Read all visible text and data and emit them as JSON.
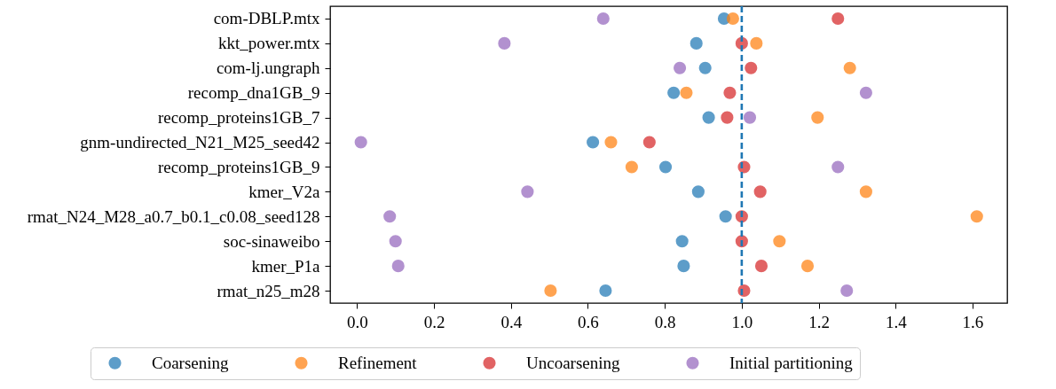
{
  "chart_data": {
    "type": "scatter",
    "orientation": "horizontal",
    "categories": [
      "com-DBLP.mtx",
      "kkt_power.mtx",
      "com-lj.ungraph",
      "recomp_dna1GB_9",
      "recomp_proteins1GB_7",
      "gnm-undirected_N21_M25_seed42",
      "recomp_proteins1GB_9",
      "kmer_V2a",
      "rmat_N24_M28_a0.7_b0.1_c0.08_seed128",
      "soc-sinaweibo",
      "kmer_P1a",
      "rmat_n25_m28"
    ],
    "series": [
      {
        "name": "Coarsening",
        "color": "#1f77b4",
        "values": [
          0.954,
          0.882,
          0.905,
          0.823,
          0.914,
          0.613,
          0.802,
          0.887,
          0.958,
          0.845,
          0.849,
          0.646
        ]
      },
      {
        "name": "Refinement",
        "color": "#ff7f0e",
        "values": [
          0.977,
          1.038,
          1.281,
          0.856,
          1.197,
          0.66,
          0.714,
          1.323,
          1.611,
          1.098,
          1.171,
          0.503
        ]
      },
      {
        "name": "Uncoarsening",
        "color": "#d62728",
        "values": [
          1.25,
          1.0,
          1.024,
          0.969,
          0.962,
          0.76,
          1.006,
          1.048,
          1.0,
          1.0,
          1.051,
          1.006
        ]
      },
      {
        "name": "Initial partitioning",
        "color": "#9467bd",
        "values": [
          0.64,
          0.383,
          0.839,
          1.323,
          1.021,
          0.01,
          1.25,
          0.443,
          0.085,
          0.1,
          0.107,
          1.273
        ]
      }
    ],
    "xlim": [
      -0.07,
      1.69
    ],
    "xticks": [
      {
        "value": 0,
        "label": "0.0"
      },
      0.2,
      0.4,
      0.6,
      0.8,
      {
        "value": 1,
        "label": "1.0"
      },
      1.2,
      1.4,
      1.6
    ],
    "ref_lines": [
      {
        "axis": "x",
        "value": 1.0,
        "color": "#1f77b4",
        "line_style": "dashed"
      }
    ],
    "marker": "circle",
    "legend": "bottom",
    "grid": false
  }
}
